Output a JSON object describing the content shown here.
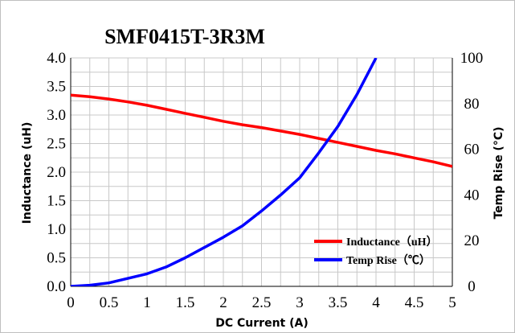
{
  "chart_data": {
    "type": "line",
    "title": "SMF0415T-3R3M",
    "xlabel": "DC Current (A)",
    "ylabel": "Inductance (uH)",
    "y2label": "Temp Rise (°C)",
    "xlim": [
      0,
      5
    ],
    "ylim": [
      0,
      4.0
    ],
    "y2lim": [
      0,
      100
    ],
    "x_ticks": [
      "0",
      "0.5",
      "1",
      "1.5",
      "2",
      "2.5",
      "3",
      "3.5",
      "4",
      "4.5",
      "5"
    ],
    "y_ticks": [
      "0.0",
      "0.5",
      "1.0",
      "1.5",
      "2.0",
      "2.5",
      "3.0",
      "3.5",
      "4.0"
    ],
    "y2_ticks": [
      "0",
      "20",
      "40",
      "60",
      "80",
      "100"
    ],
    "grid": true,
    "legend_position": "bottom-right",
    "series": [
      {
        "name": "Inductance（uH）",
        "axis": "left",
        "color": "#ff0000",
        "x": [
          0,
          0.25,
          0.5,
          0.75,
          1.0,
          1.25,
          1.5,
          1.75,
          2.0,
          2.25,
          2.5,
          2.75,
          3.0,
          3.25,
          3.5,
          3.75,
          4.0,
          4.25,
          4.5,
          4.75,
          5.0
        ],
        "values": [
          3.35,
          3.32,
          3.28,
          3.23,
          3.17,
          3.1,
          3.03,
          2.96,
          2.89,
          2.83,
          2.78,
          2.72,
          2.66,
          2.59,
          2.52,
          2.45,
          2.38,
          2.32,
          2.25,
          2.18,
          2.1
        ]
      },
      {
        "name": "Temp Rise（℃）",
        "axis": "right",
        "color": "#0000ff",
        "x": [
          0,
          0.25,
          0.5,
          0.75,
          1.0,
          1.25,
          1.5,
          1.75,
          2.0,
          2.25,
          2.5,
          2.75,
          3.0,
          3.25,
          3.5,
          3.75,
          4.0
        ],
        "values": [
          0,
          0.5,
          1.5,
          3.5,
          5.5,
          8.5,
          12.5,
          17,
          21.5,
          26.5,
          33,
          40,
          47.5,
          58.5,
          70,
          84,
          100
        ]
      }
    ]
  }
}
